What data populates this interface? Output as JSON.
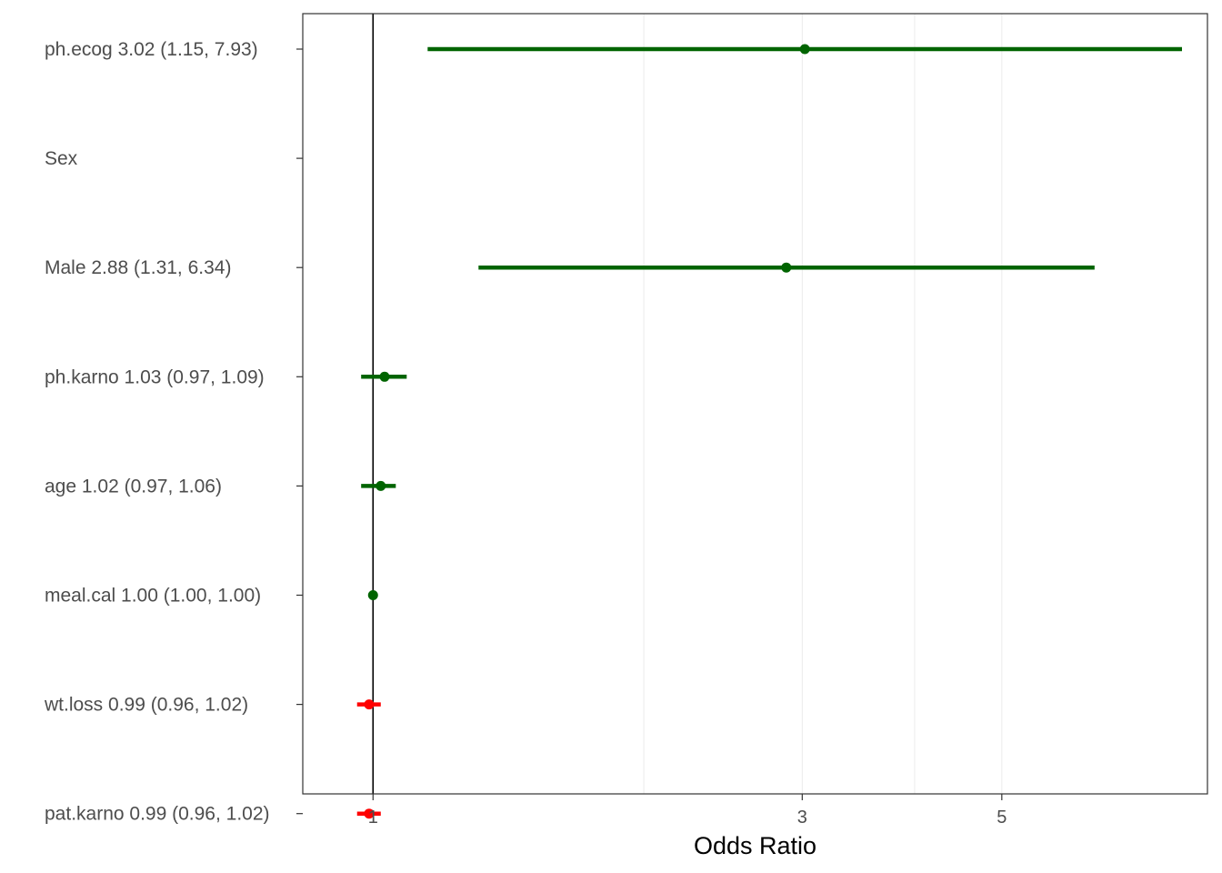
{
  "chart_data": {
    "type": "forest",
    "xlabel": "Odds Ratio",
    "x_scale": "log",
    "xlim": [
      0.9,
      7.93
    ],
    "x_ticks": [
      1,
      3,
      5
    ],
    "x_tick_labels": [
      "1",
      "3",
      "5"
    ],
    "minor_gridlines": [
      2,
      4
    ],
    "reference_line": 1,
    "grid": true,
    "colors": {
      "positive": "#006400",
      "negative": "#ff0000",
      "reference_line": "#000000",
      "gridline": "#ebebeb",
      "panel_border": "#333333"
    },
    "rows": [
      {
        "label": "ph.ecog 3.02 (1.15, 7.93)",
        "variable": "ph.ecog",
        "or": 3.02,
        "lower": 1.15,
        "upper": 7.93,
        "direction": "positive"
      },
      {
        "label": "Sex",
        "header": true
      },
      {
        "label": "Male 2.88 (1.31, 6.34)",
        "variable": "Male",
        "or": 2.88,
        "lower": 1.31,
        "upper": 6.34,
        "direction": "positive"
      },
      {
        "label": "ph.karno 1.03 (0.97, 1.09)",
        "variable": "ph.karno",
        "or": 1.03,
        "lower": 0.97,
        "upper": 1.09,
        "direction": "positive"
      },
      {
        "label": "age 1.02 (0.97, 1.06)",
        "variable": "age",
        "or": 1.02,
        "lower": 0.97,
        "upper": 1.06,
        "direction": "positive"
      },
      {
        "label": "meal.cal 1.00 (1.00, 1.00)",
        "variable": "meal.cal",
        "or": 1.0,
        "lower": 1.0,
        "upper": 1.0,
        "direction": "positive"
      },
      {
        "label": "wt.loss 0.99 (0.96, 1.02)",
        "variable": "wt.loss",
        "or": 0.99,
        "lower": 0.96,
        "upper": 1.02,
        "direction": "negative"
      },
      {
        "label": "pat.karno 0.99 (0.96, 1.02)",
        "variable": "pat.karno",
        "or": 0.99,
        "lower": 0.96,
        "upper": 1.02,
        "direction": "negative"
      }
    ]
  }
}
